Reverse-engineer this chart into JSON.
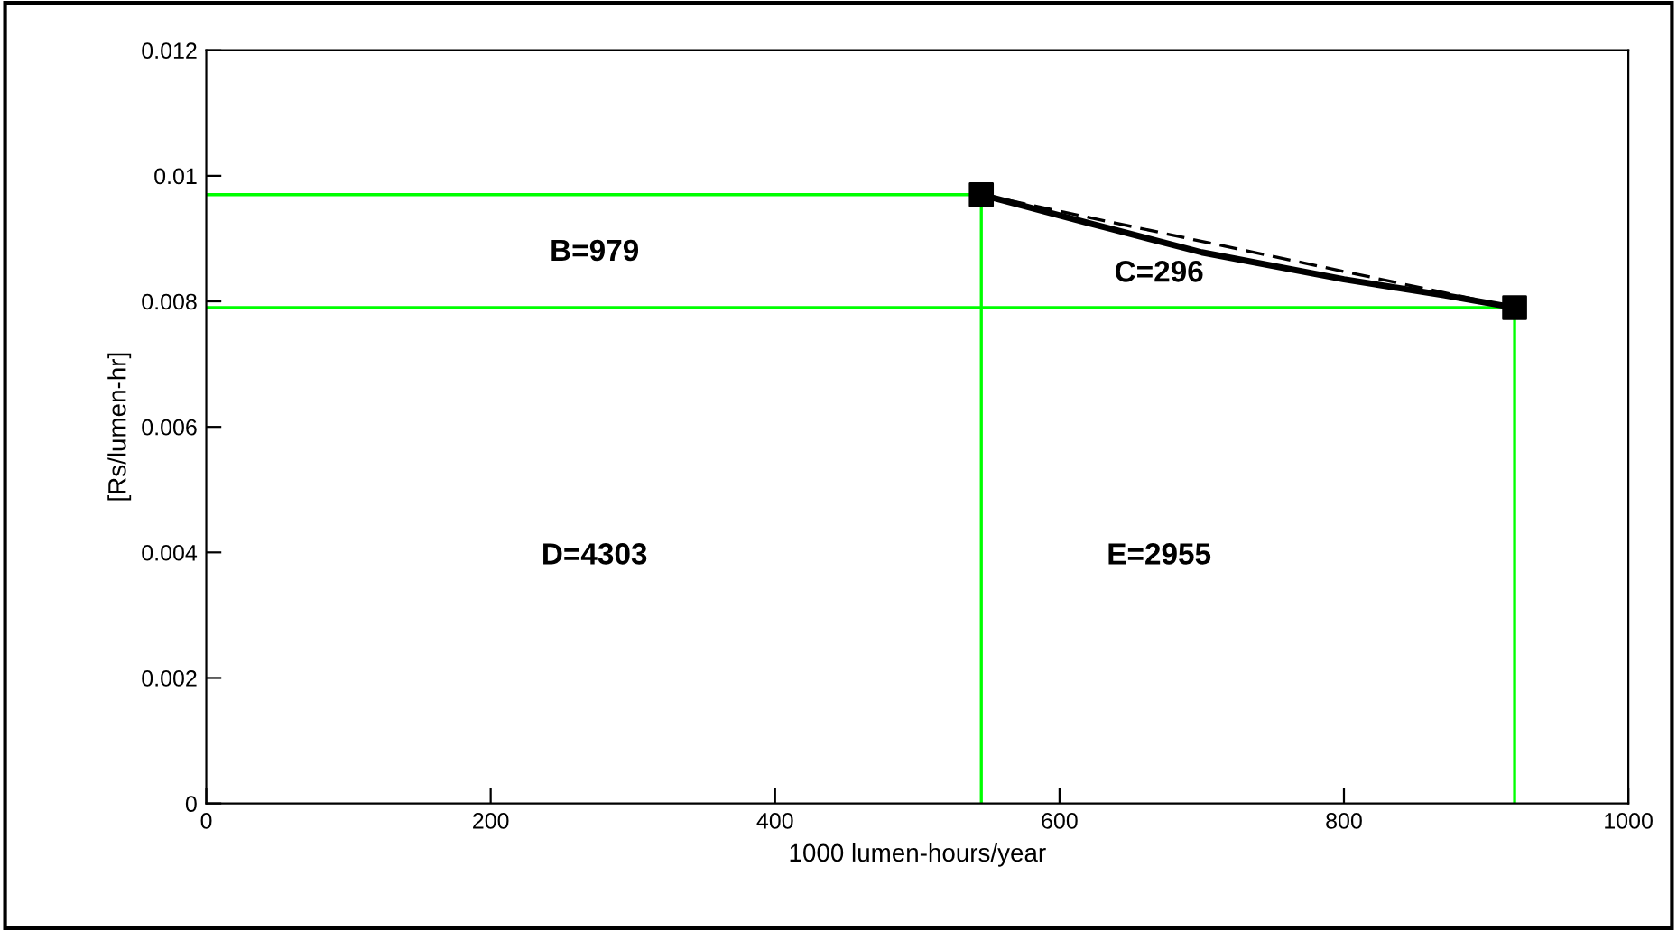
{
  "chart_data": {
    "type": "line",
    "xlabel": "1000 lumen-hours/year",
    "ylabel": "[Rs/lumen-hr]",
    "xlim": [
      0,
      1000
    ],
    "xticks": [
      0,
      200,
      400,
      600,
      800,
      1000
    ],
    "ylim": [
      0,
      0.012
    ],
    "yticks": [
      0,
      0.002,
      0.004,
      0.006,
      0.008,
      0.01,
      0.012
    ],
    "grid": false,
    "legend": false,
    "series": [
      {
        "color": "#00ff00",
        "x": [
          0,
          545,
          545
        ],
        "values": [
          0.0097,
          0.0097,
          0
        ],
        "marker": "none",
        "line_style": "solid"
      },
      {
        "color": "#00ff00",
        "x": [
          0,
          920,
          920
        ],
        "values": [
          0.0079,
          0.0079,
          0
        ],
        "marker": "none",
        "line_style": "solid"
      },
      {
        "color": "#000000",
        "x": [
          545,
          920
        ],
        "values": [
          0.0097,
          0.0079
        ],
        "marker": "none",
        "line_style": "dashed"
      },
      {
        "color": "#000000",
        "x": [
          545,
          620,
          700,
          800,
          870,
          920
        ],
        "values": [
          0.0097,
          0.00925,
          0.00878,
          0.00835,
          0.0081,
          0.0079
        ],
        "marker": "none",
        "line_style": "solid"
      },
      {
        "type": "scatter",
        "color": "#000000",
        "x": [
          545,
          920
        ],
        "values": [
          0.0097,
          0.0079
        ],
        "marker": "square"
      }
    ],
    "annotations": [
      "B=979",
      "C=296",
      "D=4303",
      "E=2955"
    ]
  }
}
